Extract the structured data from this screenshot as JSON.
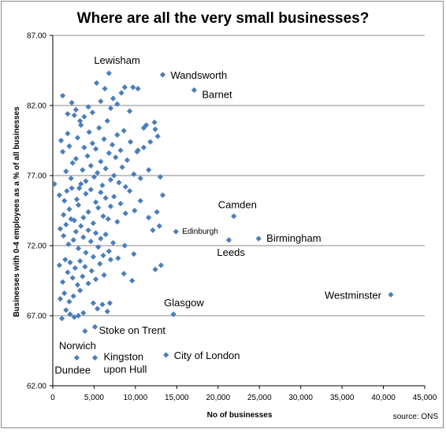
{
  "chart_data": {
    "type": "scatter",
    "title": "Where are all the very small businesses?",
    "xlabel": "No of businesses",
    "ylabel": "Businesses with 0-4 employees as a % of all businesses",
    "source": "source: ONS",
    "xlim": [
      0,
      45000
    ],
    "ylim": [
      62,
      87
    ],
    "x_ticks": [
      0,
      5000,
      10000,
      15000,
      20000,
      25000,
      30000,
      35000,
      40000,
      45000
    ],
    "x_tick_labels": [
      "0",
      "5,000",
      "10,000",
      "15,000",
      "20,000",
      "25,000",
      "30,000",
      "35,000",
      "40,000",
      "45,000"
    ],
    "y_ticks": [
      62,
      67,
      72,
      77,
      82,
      87
    ],
    "y_tick_labels": [
      "62.00",
      "67.00",
      "72.00",
      "77.00",
      "82.00",
      "87.00"
    ],
    "grid": "horizontal",
    "marker_color": "#4a7ebb",
    "labeled_points": [
      {
        "label": "Lewisham",
        "x": 6800,
        "y": 84.3
      },
      {
        "label": "Wandsworth",
        "x": 13300,
        "y": 84.2
      },
      {
        "label": "Barnet",
        "x": 17100,
        "y": 83.1
      },
      {
        "label": "Camden",
        "x": 21900,
        "y": 74.1
      },
      {
        "label": "Edinburgh",
        "x": 14900,
        "y": 73.0
      },
      {
        "label": "Leeds",
        "x": 21300,
        "y": 72.4
      },
      {
        "label": "Birmingham",
        "x": 24900,
        "y": 72.5
      },
      {
        "label": "Westminster",
        "x": 40900,
        "y": 68.5
      },
      {
        "label": "Glasgow",
        "x": 14600,
        "y": 67.1
      },
      {
        "label": "Stoke on Trent",
        "x": 5100,
        "y": 66.2
      },
      {
        "label": "Norwich",
        "x": 3900,
        "y": 65.9
      },
      {
        "label": "City of London",
        "x": 13700,
        "y": 64.2
      },
      {
        "label": "Dundee",
        "x": 2900,
        "y": 64.0
      },
      {
        "label": "Kingston upon Hull",
        "x": 5100,
        "y": 64.0
      }
    ],
    "points": [
      [
        200,
        76.4
      ],
      [
        1000,
        79.5
      ],
      [
        1200,
        78.7
      ],
      [
        1400,
        75.2
      ],
      [
        1600,
        77.3
      ],
      [
        1800,
        80.0
      ],
      [
        2000,
        79.1
      ],
      [
        2200,
        76.8
      ],
      [
        2400,
        77.9
      ],
      [
        2600,
        81.3
      ],
      [
        2800,
        78.2
      ],
      [
        3000,
        79.7
      ],
      [
        3200,
        76.1
      ],
      [
        3400,
        80.6
      ],
      [
        3600,
        77.4
      ],
      [
        3800,
        79.0
      ],
      [
        4000,
        76.6
      ],
      [
        4200,
        78.4
      ],
      [
        4400,
        80.1
      ],
      [
        4600,
        77.7
      ],
      [
        4800,
        79.3
      ],
      [
        5000,
        76.9
      ],
      [
        5200,
        78.9
      ],
      [
        5400,
        77.2
      ],
      [
        5600,
        80.4
      ],
      [
        5800,
        78.0
      ],
      [
        6000,
        76.3
      ],
      [
        6200,
        79.6
      ],
      [
        6400,
        77.5
      ],
      [
        6600,
        80.9
      ],
      [
        6800,
        78.6
      ],
      [
        7000,
        76.7
      ],
      [
        7200,
        79.2
      ],
      [
        7400,
        77.0
      ],
      [
        7600,
        78.3
      ],
      [
        7800,
        79.9
      ],
      [
        8000,
        76.5
      ],
      [
        8200,
        78.8
      ],
      [
        8400,
        77.6
      ],
      [
        8600,
        80.2
      ],
      [
        8800,
        76.2
      ],
      [
        9000,
        78.1
      ],
      [
        9400,
        79.4
      ],
      [
        9800,
        77.1
      ],
      [
        10200,
        78.7
      ],
      [
        10600,
        76.8
      ],
      [
        11000,
        79.0
      ],
      [
        11600,
        77.4
      ],
      [
        12400,
        80.3
      ],
      [
        13000,
        76.9
      ],
      [
        1200,
        82.7
      ],
      [
        1800,
        81.4
      ],
      [
        2300,
        82.2
      ],
      [
        2800,
        81.7
      ],
      [
        3300,
        80.9
      ],
      [
        3800,
        81.2
      ],
      [
        4300,
        81.9
      ],
      [
        4800,
        81.5
      ],
      [
        5300,
        83.6
      ],
      [
        5800,
        82.3
      ],
      [
        6300,
        83.2
      ],
      [
        7000,
        81.8
      ],
      [
        7300,
        82.5
      ],
      [
        7800,
        82.1
      ],
      [
        8300,
        82.9
      ],
      [
        8700,
        83.3
      ],
      [
        9300,
        81.6
      ],
      [
        9700,
        83.3
      ],
      [
        10300,
        83.2
      ],
      [
        11000,
        80.4
      ],
      [
        11300,
        80.6
      ],
      [
        12300,
        80.8
      ],
      [
        12700,
        79.8
      ],
      [
        11800,
        79.4
      ],
      [
        10300,
        78.8
      ],
      [
        800,
        75.6
      ],
      [
        1300,
        74.2
      ],
      [
        1700,
        75.9
      ],
      [
        2000,
        74.6
      ],
      [
        2300,
        76.1
      ],
      [
        2600,
        73.8
      ],
      [
        2900,
        75.3
      ],
      [
        3100,
        74.9
      ],
      [
        3400,
        76.4
      ],
      [
        3700,
        74.0
      ],
      [
        4000,
        75.7
      ],
      [
        4300,
        74.4
      ],
      [
        4600,
        76.0
      ],
      [
        4900,
        73.6
      ],
      [
        5200,
        75.1
      ],
      [
        5500,
        74.7
      ],
      [
        5800,
        75.8
      ],
      [
        6100,
        74.1
      ],
      [
        6400,
        75.4
      ],
      [
        6700,
        73.9
      ],
      [
        7000,
        74.8
      ],
      [
        7400,
        75.5
      ],
      [
        7800,
        73.7
      ],
      [
        8200,
        75.0
      ],
      [
        8800,
        74.3
      ],
      [
        9300,
        75.9
      ],
      [
        9900,
        74.5
      ],
      [
        10600,
        75.2
      ],
      [
        11600,
        74.0
      ],
      [
        12600,
        74.4
      ],
      [
        13300,
        75.6
      ],
      [
        900,
        73.2
      ],
      [
        1300,
        72.7
      ],
      [
        1600,
        73.5
      ],
      [
        1900,
        72.1
      ],
      [
        2200,
        73.9
      ],
      [
        2500,
        72.4
      ],
      [
        2800,
        73.0
      ],
      [
        3100,
        71.8
      ],
      [
        3400,
        73.4
      ],
      [
        3700,
        72.6
      ],
      [
        4000,
        71.5
      ],
      [
        4300,
        73.1
      ],
      [
        4600,
        72.3
      ],
      [
        4900,
        71.2
      ],
      [
        5200,
        72.9
      ],
      [
        5500,
        71.9
      ],
      [
        5800,
        72.5
      ],
      [
        6100,
        71.3
      ],
      [
        6400,
        72.8
      ],
      [
        6800,
        71.6
      ],
      [
        7300,
        72.2
      ],
      [
        7900,
        71.1
      ],
      [
        8700,
        72.0
      ],
      [
        9800,
        71.4
      ],
      [
        12100,
        73.1
      ],
      [
        12900,
        73.4
      ],
      [
        12400,
        70.3
      ],
      [
        13100,
        70.6
      ],
      [
        800,
        70.6
      ],
      [
        1200,
        69.4
      ],
      [
        1500,
        71.0
      ],
      [
        1800,
        70.1
      ],
      [
        2100,
        70.8
      ],
      [
        2400,
        69.7
      ],
      [
        2700,
        70.4
      ],
      [
        3000,
        69.2
      ],
      [
        3300,
        70.9
      ],
      [
        3600,
        69.8
      ],
      [
        3900,
        70.5
      ],
      [
        4300,
        69.3
      ],
      [
        4700,
        70.2
      ],
      [
        5200,
        69.6
      ],
      [
        5700,
        70.7
      ],
      [
        6200,
        69.9
      ],
      [
        7000,
        71.0
      ],
      [
        8600,
        70.0
      ],
      [
        9600,
        69.5
      ],
      [
        3300,
        68.8
      ],
      [
        900,
        68.2
      ],
      [
        1400,
        68.6
      ],
      [
        2000,
        68.0
      ],
      [
        2500,
        68.4
      ],
      [
        4900,
        67.9
      ],
      [
        5400,
        67.5
      ],
      [
        6000,
        67.8
      ],
      [
        6600,
        67.3
      ],
      [
        6900,
        67.9
      ],
      [
        2100,
        67.1
      ],
      [
        2600,
        66.9
      ],
      [
        3100,
        67.0
      ],
      [
        1100,
        66.8
      ],
      [
        1600,
        67.4
      ],
      [
        3700,
        67.2
      ]
    ]
  }
}
